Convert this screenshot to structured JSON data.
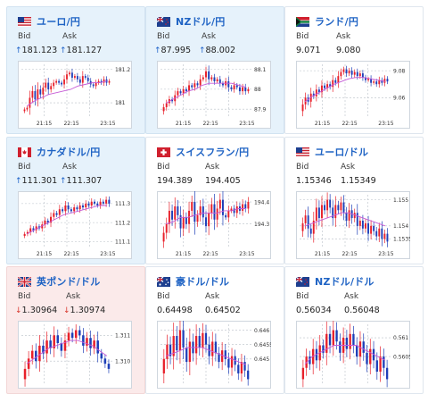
{
  "bid_label": "Bid",
  "ask_label": "Ask",
  "colors": {
    "title": "#1f63c4",
    "candle_up": "#e8202a",
    "candle_down": "#1e3fb8",
    "ma": "#c65bd6",
    "card_up_bg": "#e6f2fb",
    "card_down_bg": "#fbeaea"
  },
  "cards": [
    {
      "id": "usdjpy",
      "title": "ユーロ/円",
      "flag": "flag-icon-us",
      "dir": "up",
      "bid": "181.123",
      "ask": "181.127",
      "chart": {
        "yticks": [
          "181.2",
          "181"
        ],
        "xticks": [
          "21:15",
          "22:15",
          "23:15"
        ],
        "closes": [
          180.96,
          180.97,
          181.03,
          181.07,
          181.02,
          181.08,
          181.05,
          181.09,
          181.12,
          181.08,
          181.1,
          181.12,
          181.13,
          181.12,
          181.11,
          181.14,
          181.17,
          181.18,
          181.15,
          181.16,
          181.14,
          181.12,
          181.16,
          181.15,
          181.13,
          181.11,
          181.1,
          181.12,
          181.13,
          181.12,
          181.14,
          181.12,
          181.13
        ],
        "ma": [
          180.98,
          181.01,
          181.03,
          181.05,
          181.06,
          181.07,
          181.08,
          181.1,
          181.11,
          181.12,
          181.12,
          181.13
        ]
      }
    },
    {
      "id": "nzdjpy",
      "title": "NZドル/円",
      "flag": "flag-icon-nz",
      "dir": "up",
      "bid": "87.995",
      "ask": "88.002",
      "chart": {
        "yticks": [
          "88.1",
          "88",
          "87.9"
        ],
        "xticks": [
          "21:15",
          "22:15",
          "23:15"
        ],
        "closes": [
          87.91,
          87.93,
          87.95,
          87.94,
          87.97,
          87.99,
          87.98,
          88.0,
          87.99,
          88.02,
          88.01,
          88.03,
          88.02,
          88.05,
          88.06,
          88.09,
          88.05,
          88.06,
          88.04,
          88.05,
          88.03,
          88.02,
          88.04,
          88.01,
          88.0,
          88.02,
          88.01,
          87.99,
          88.01,
          87.99,
          88.0
        ],
        "ma": [
          87.93,
          87.95,
          87.97,
          87.99,
          88.0,
          88.02,
          88.03,
          88.03,
          88.03,
          88.03,
          88.02,
          88.01
        ]
      }
    },
    {
      "id": "zarjpy",
      "title": "ランド/円",
      "flag": "flag-icon-za",
      "dir": "none",
      "bid": "9.071",
      "ask": "9.080",
      "chart": {
        "yticks": [
          "9.08",
          "9.06"
        ],
        "xticks": [
          "21:15",
          "22:15",
          "23:15"
        ],
        "closes": [
          9.055,
          9.06,
          9.057,
          9.063,
          9.061,
          9.066,
          9.064,
          9.069,
          9.067,
          9.07,
          9.068,
          9.073,
          9.071,
          9.076,
          9.079,
          9.081,
          9.078,
          9.08,
          9.077,
          9.079,
          9.076,
          9.078,
          9.075,
          9.073,
          9.074,
          9.071,
          9.072,
          9.07,
          9.073,
          9.071,
          9.074,
          9.072
        ],
        "ma": [
          9.057,
          9.061,
          9.064,
          9.067,
          9.07,
          9.072,
          9.074,
          9.075,
          9.075,
          9.074,
          9.073,
          9.072
        ]
      }
    },
    {
      "id": "cadjpy",
      "title": "カナダドル/円",
      "flag": "flag-icon-ca",
      "dir": "up",
      "bid": "111.301",
      "ask": "111.307",
      "chart": {
        "yticks": [
          "111.3",
          "111.2",
          "111.1"
        ],
        "xticks": [
          "21:15",
          "22:15",
          "23:15"
        ],
        "closes": [
          111.14,
          111.15,
          111.17,
          111.16,
          111.18,
          111.17,
          111.19,
          111.21,
          111.2,
          111.23,
          111.25,
          111.24,
          111.27,
          111.26,
          111.29,
          111.27,
          111.26,
          111.28,
          111.27,
          111.29,
          111.28,
          111.3,
          111.29,
          111.31,
          111.3,
          111.29,
          111.31,
          111.3,
          111.32,
          111.3
        ],
        "ma": [
          111.14,
          111.16,
          111.18,
          111.2,
          111.22,
          111.24,
          111.25,
          111.26,
          111.27,
          111.28,
          111.29,
          111.29
        ]
      }
    },
    {
      "id": "chfjpy",
      "title": "スイスフラン/円",
      "flag": "flag-icon-ch",
      "dir": "none",
      "bid": "194.389",
      "ask": "194.405",
      "chart": {
        "yticks": [
          "194.4",
          "194.3"
        ],
        "xticks": [
          "21:15",
          "22:15",
          "23:15"
        ],
        "closes": [
          194.26,
          194.3,
          194.36,
          194.32,
          194.38,
          194.34,
          194.28,
          194.33,
          194.3,
          194.36,
          194.4,
          194.31,
          194.34,
          194.38,
          194.33,
          194.29,
          194.35,
          194.39,
          194.32,
          194.37,
          194.41,
          194.34,
          194.33,
          194.36,
          194.37,
          194.35,
          194.38,
          194.36,
          194.39,
          194.37,
          194.4
        ],
        "ma": [
          194.3,
          194.31,
          194.33,
          194.33,
          194.34,
          194.35,
          194.35,
          194.35,
          194.36,
          194.36,
          194.37,
          194.37
        ]
      }
    },
    {
      "id": "eurusd",
      "title": "ユーロ/ドル",
      "flag": "flag-icon-us",
      "dir": "none",
      "bid": "1.15346",
      "ask": "1.15349",
      "chart": {
        "yticks": [
          "1.155",
          "1.154",
          "1.1535"
        ],
        "xticks": [
          "21:15",
          "22:15",
          "23:15"
        ],
        "closes": [
          1.1541,
          1.1544,
          1.1539,
          1.1537,
          1.1542,
          1.1547,
          1.1543,
          1.1548,
          1.1546,
          1.155,
          1.1547,
          1.1543,
          1.1548,
          1.1546,
          1.1549,
          1.1545,
          1.1542,
          1.1546,
          1.1543,
          1.1545,
          1.154,
          1.1542,
          1.1539,
          1.1541,
          1.1537,
          1.154,
          1.1538,
          1.1536,
          1.1539,
          1.1535,
          1.1537,
          1.1534
        ],
        "ma": [
          1.154,
          1.1541,
          1.1542,
          1.1543,
          1.1544,
          1.1545,
          1.1545,
          1.1544,
          1.1543,
          1.1542,
          1.1541,
          1.154
        ]
      }
    },
    {
      "id": "gbpusd",
      "title": "英ポンド/ドル",
      "flag": "flag-icon-gb",
      "dir": "down",
      "bid": "1.30964",
      "ask": "1.30974",
      "chart": {
        "yticks": [
          "1.311",
          "1.310"
        ],
        "xticks": [],
        "closes": [
          1.3097,
          1.3101,
          1.3104,
          1.31,
          1.3106,
          1.3103,
          1.3108,
          1.3105,
          1.311,
          1.3107,
          1.3104,
          1.3108,
          1.3111,
          1.3109,
          1.3112,
          1.311,
          1.3106,
          1.3109,
          1.3105,
          1.3108,
          1.3103,
          1.3101,
          1.3099,
          1.3097
        ],
        "ma": [
          1.3099,
          1.3101,
          1.3103,
          1.3105,
          1.3106,
          1.3107,
          1.3108,
          1.3108,
          1.3107,
          1.3106,
          1.3104,
          1.3102
        ]
      }
    },
    {
      "id": "audusd",
      "title": "豪ドル/ドル",
      "flag": "flag-icon-au",
      "dir": "none",
      "bid": "0.64498",
      "ask": "0.64502",
      "chart": {
        "yticks": [
          "0.646",
          "0.6455",
          "0.645"
        ],
        "xticks": [],
        "closes": [
          0.645,
          0.6455,
          0.6451,
          0.6458,
          0.6453,
          0.646,
          0.6454,
          0.6449,
          0.6456,
          0.6452,
          0.6458,
          0.6454,
          0.6459,
          0.6455,
          0.6451,
          0.6456,
          0.6452,
          0.6449,
          0.6453,
          0.645,
          0.6447,
          0.6451,
          0.6448,
          0.6445,
          0.6449,
          0.6446,
          0.6443
        ],
        "ma": [
          0.6451,
          0.6452,
          0.6453,
          0.6454,
          0.6454,
          0.6454,
          0.6453,
          0.6452,
          0.6451,
          0.645,
          0.6449,
          0.6448
        ]
      }
    },
    {
      "id": "nzdusd",
      "title": "NZドル/ドル",
      "flag": "flag-icon-nz",
      "dir": "none",
      "bid": "0.56034",
      "ask": "0.56048",
      "chart": {
        "yticks": [
          "0.561",
          "0.5605"
        ],
        "xticks": [],
        "closes": [
          0.5602,
          0.5605,
          0.5603,
          0.5607,
          0.5604,
          0.5608,
          0.5606,
          0.5611,
          0.5608,
          0.5612,
          0.5609,
          0.5606,
          0.561,
          0.5607,
          0.5611,
          0.5608,
          0.5605,
          0.5609,
          0.5606,
          0.5603,
          0.5607,
          0.5604,
          0.5601,
          0.5605,
          0.5602,
          0.5599
        ],
        "ma": [
          0.5603,
          0.5605,
          0.5606,
          0.5607,
          0.5608,
          0.5608,
          0.5608,
          0.5608,
          0.5607,
          0.5606,
          0.5605,
          0.5604
        ]
      }
    }
  ]
}
